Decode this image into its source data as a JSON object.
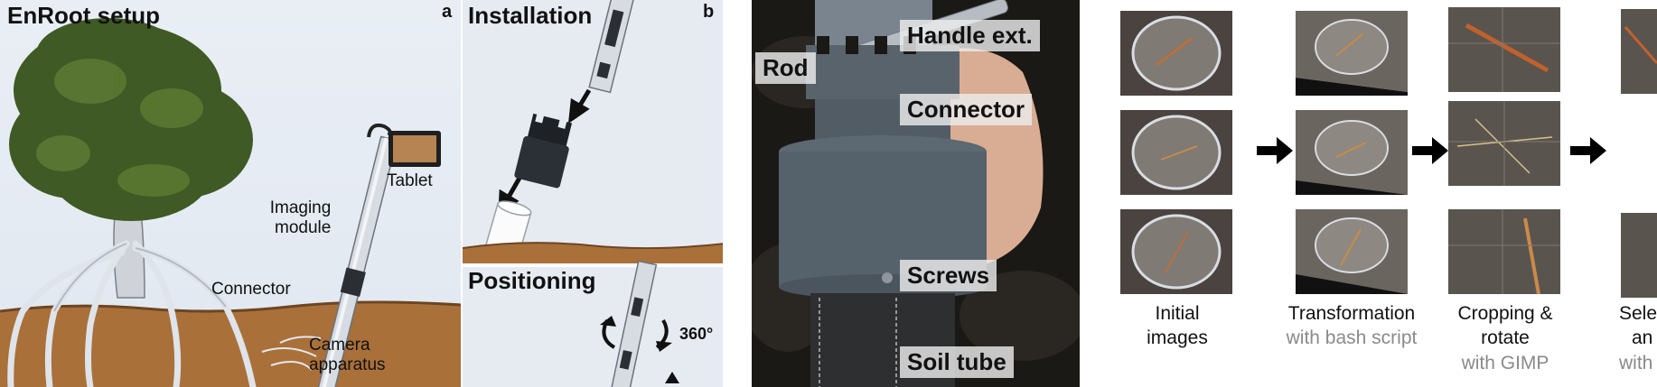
{
  "panel_a": {
    "title": "EnRoot setup",
    "letter": "a",
    "labels": {
      "tablet": "Tablet",
      "imaging_line1": "Imaging",
      "imaging_line2": "module",
      "connector": "Connector",
      "camera_line1": "Camera",
      "camera_line2": "apparatus"
    }
  },
  "panel_b": {
    "installation_title": "Installation",
    "letter": "b",
    "positioning_title": "Positioning",
    "rotation_label": "360°"
  },
  "panel_c": {
    "labels": {
      "handle": "Handle ext.",
      "rod": "Rod",
      "connector": "Connector",
      "screws": "Screws",
      "soil_tube": "Soil tube"
    }
  },
  "panel_d": {
    "steps": [
      {
        "main": "Initial",
        "main2": "images",
        "sub": ""
      },
      {
        "main": "Transformation",
        "main2": "",
        "sub": "with bash script"
      },
      {
        "main": "Cropping &",
        "main2": "rotate",
        "sub": "with GIMP"
      },
      {
        "main": "Sele",
        "main2": "an",
        "sub": "with"
      }
    ]
  },
  "colors": {
    "soil": "#a9703a",
    "sky": "#e6ebf2",
    "foliage": "#3f5a24",
    "roots": "#dfe3ea",
    "pipe": "#4a5560",
    "arrow": "#000000",
    "subtext": "#8a8a8a"
  }
}
